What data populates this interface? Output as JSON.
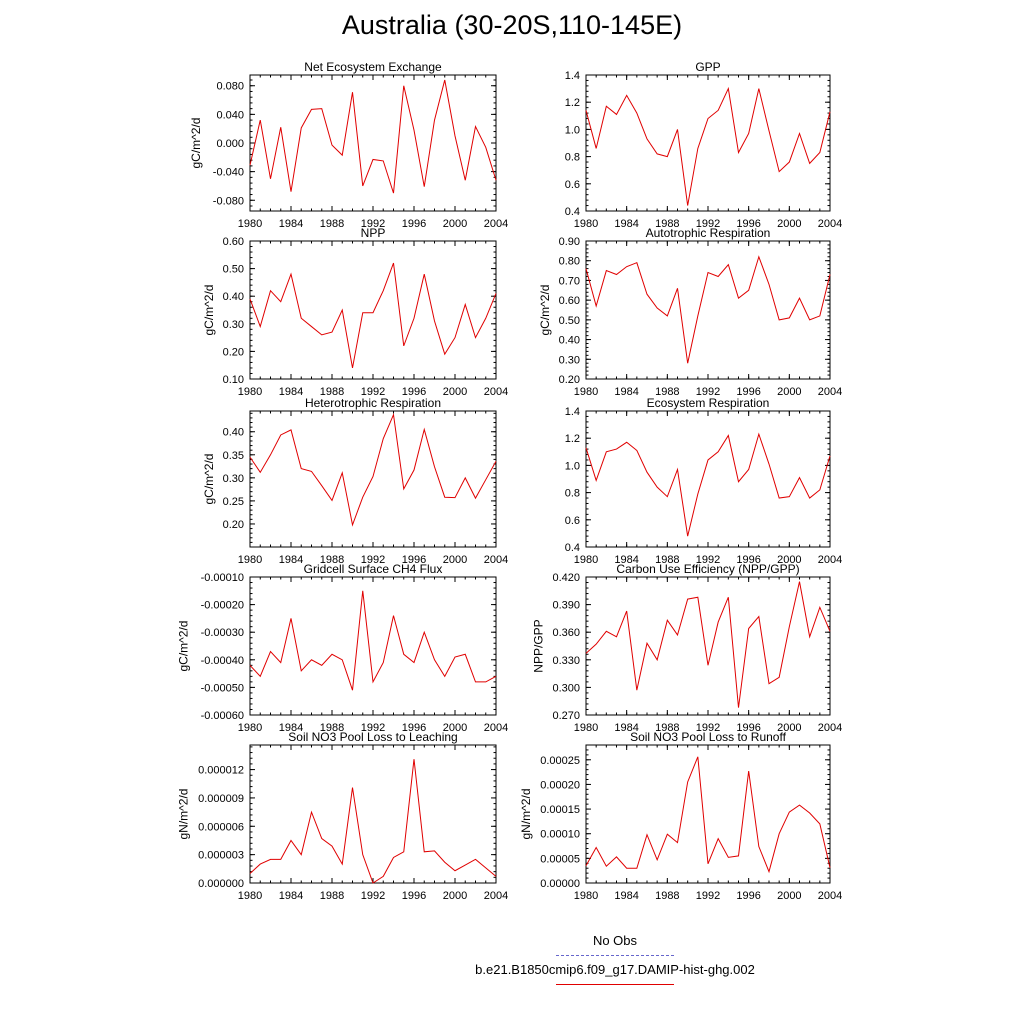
{
  "page_title": "Australia (30-20S,110-145E)",
  "legend": {
    "obs_label": "No Obs",
    "model_label": "b.e21.B1850cmip6.f09_g17.DAMIP-hist-ghg.002",
    "obs_color": "#6666cc",
    "model_color": "#e00000"
  },
  "chart_data": [
    {
      "type": "line",
      "title": "Net Ecosystem Exchange",
      "ylabel": "gC/m^2/d",
      "xlim": [
        1980,
        2004
      ],
      "ylim": [
        -0.095,
        0.095
      ],
      "yticks": [
        "0.080",
        "0.040",
        "0.000",
        "-0.040",
        "-0.080"
      ],
      "ytick_values": [
        0.08,
        0.04,
        0.0,
        -0.04,
        -0.08
      ],
      "xticks": [
        "1980",
        "1984",
        "1988",
        "1992",
        "1996",
        "2000",
        "2004"
      ],
      "x": [
        1980,
        1981,
        1982,
        1983,
        1984,
        1985,
        1986,
        1987,
        1988,
        1989,
        1990,
        1991,
        1992,
        1993,
        1994,
        1995,
        1996,
        1997,
        1998,
        1999,
        2000,
        2001,
        2002,
        2003,
        2004
      ],
      "series": [
        {
          "values": [
            -0.031,
            0.032,
            -0.05,
            0.022,
            -0.068,
            0.021,
            0.047,
            0.048,
            -0.003,
            -0.017,
            0.071,
            -0.06,
            -0.023,
            -0.025,
            -0.07,
            0.08,
            0.018,
            -0.061,
            0.032,
            0.088,
            0.01,
            -0.052,
            0.023,
            -0.006,
            -0.052
          ],
          "color": "#e00000"
        }
      ]
    },
    {
      "type": "line",
      "title": "GPP",
      "ylabel": "",
      "xlim": [
        1980,
        2004
      ],
      "ylim": [
        0.4,
        1.4
      ],
      "yticks": [
        "1.4",
        "1.2",
        "1.0",
        "0.8",
        "0.6",
        "0.4"
      ],
      "ytick_values": [
        1.4,
        1.2,
        1.0,
        0.8,
        0.6,
        0.4
      ],
      "xticks": [
        "1980",
        "1984",
        "1988",
        "1992",
        "1996",
        "2000",
        "2004"
      ],
      "x": [
        1980,
        1981,
        1982,
        1983,
        1984,
        1985,
        1986,
        1987,
        1988,
        1989,
        1990,
        1991,
        1992,
        1993,
        1994,
        1995,
        1996,
        1997,
        1998,
        1999,
        2000,
        2001,
        2002,
        2003,
        2004
      ],
      "series": [
        {
          "values": [
            1.14,
            0.86,
            1.17,
            1.11,
            1.25,
            1.12,
            0.93,
            0.82,
            0.8,
            1.0,
            0.44,
            0.86,
            1.08,
            1.14,
            1.3,
            0.83,
            0.97,
            1.3,
            0.99,
            0.69,
            0.76,
            0.97,
            0.75,
            0.83,
            1.13
          ],
          "color": "#e00000"
        }
      ]
    },
    {
      "type": "line",
      "title": "NPP",
      "ylabel": "gC/m^2/d",
      "xlim": [
        1980,
        2004
      ],
      "ylim": [
        0.1,
        0.6
      ],
      "yticks": [
        "0.60",
        "0.50",
        "0.40",
        "0.30",
        "0.20",
        "0.10"
      ],
      "ytick_values": [
        0.6,
        0.5,
        0.4,
        0.3,
        0.2,
        0.1
      ],
      "xticks": [
        "1980",
        "1984",
        "1988",
        "1992",
        "1996",
        "2000",
        "2004"
      ],
      "x": [
        1980,
        1981,
        1982,
        1983,
        1984,
        1985,
        1986,
        1987,
        1988,
        1989,
        1990,
        1991,
        1992,
        1993,
        1994,
        1995,
        1996,
        1997,
        1998,
        1999,
        2000,
        2001,
        2002,
        2003,
        2004
      ],
      "series": [
        {
          "values": [
            0.39,
            0.29,
            0.42,
            0.38,
            0.48,
            0.32,
            0.29,
            0.26,
            0.27,
            0.35,
            0.14,
            0.34,
            0.34,
            0.42,
            0.52,
            0.22,
            0.32,
            0.48,
            0.31,
            0.19,
            0.25,
            0.37,
            0.25,
            0.32,
            0.41
          ],
          "color": "#e00000"
        }
      ]
    },
    {
      "type": "line",
      "title": "Autotrophic Respiration",
      "ylabel": "gC/m^2/d",
      "xlim": [
        1980,
        2004
      ],
      "ylim": [
        0.2,
        0.9
      ],
      "yticks": [
        "0.90",
        "0.80",
        "0.70",
        "0.60",
        "0.50",
        "0.40",
        "0.30",
        "0.20"
      ],
      "ytick_values": [
        0.9,
        0.8,
        0.7,
        0.6,
        0.5,
        0.4,
        0.3,
        0.2
      ],
      "xticks": [
        "1980",
        "1984",
        "1988",
        "1992",
        "1996",
        "2000",
        "2004"
      ],
      "x": [
        1980,
        1981,
        1982,
        1983,
        1984,
        1985,
        1986,
        1987,
        1988,
        1989,
        1990,
        1991,
        1992,
        1993,
        1994,
        1995,
        1996,
        1997,
        1998,
        1999,
        2000,
        2001,
        2002,
        2003,
        2004
      ],
      "series": [
        {
          "values": [
            0.76,
            0.57,
            0.75,
            0.73,
            0.77,
            0.79,
            0.63,
            0.56,
            0.52,
            0.66,
            0.28,
            0.52,
            0.74,
            0.72,
            0.78,
            0.61,
            0.65,
            0.82,
            0.68,
            0.5,
            0.51,
            0.61,
            0.5,
            0.52,
            0.73
          ],
          "color": "#e00000"
        }
      ]
    },
    {
      "type": "line",
      "title": "Heterotrophic Respiration",
      "ylabel": "gC/m^2/d",
      "xlim": [
        1980,
        2004
      ],
      "ylim": [
        0.15,
        0.445
      ],
      "yticks": [
        "0.40",
        "0.35",
        "0.30",
        "0.25",
        "0.20"
      ],
      "ytick_values": [
        0.4,
        0.35,
        0.3,
        0.25,
        0.2
      ],
      "xticks": [
        "1980",
        "1984",
        "1988",
        "1992",
        "1996",
        "2000",
        "2004"
      ],
      "x": [
        1980,
        1981,
        1982,
        1983,
        1984,
        1985,
        1986,
        1987,
        1988,
        1989,
        1990,
        1991,
        1992,
        1993,
        1994,
        1995,
        1996,
        1997,
        1998,
        1999,
        2000,
        2001,
        2002,
        2003,
        2004
      ],
      "series": [
        {
          "values": [
            0.345,
            0.312,
            0.35,
            0.393,
            0.404,
            0.32,
            0.314,
            0.283,
            0.251,
            0.311,
            0.198,
            0.258,
            0.303,
            0.385,
            0.437,
            0.276,
            0.317,
            0.405,
            0.324,
            0.258,
            0.257,
            0.3,
            0.256,
            0.296,
            0.336
          ],
          "color": "#e00000"
        }
      ]
    },
    {
      "type": "line",
      "title": "Ecosystem Respiration",
      "ylabel": "",
      "xlim": [
        1980,
        2004
      ],
      "ylim": [
        0.4,
        1.4
      ],
      "yticks": [
        "1.4",
        "1.2",
        "1.0",
        "0.8",
        "0.6",
        "0.4"
      ],
      "ytick_values": [
        1.4,
        1.2,
        1.0,
        0.8,
        0.6,
        0.4
      ],
      "xticks": [
        "1980",
        "1984",
        "1988",
        "1992",
        "1996",
        "2000",
        "2004"
      ],
      "x": [
        1980,
        1981,
        1982,
        1983,
        1984,
        1985,
        1986,
        1987,
        1988,
        1989,
        1990,
        1991,
        1992,
        1993,
        1994,
        1995,
        1996,
        1997,
        1998,
        1999,
        2000,
        2001,
        2002,
        2003,
        2004
      ],
      "series": [
        {
          "values": [
            1.13,
            0.89,
            1.1,
            1.12,
            1.17,
            1.11,
            0.95,
            0.84,
            0.77,
            0.97,
            0.48,
            0.79,
            1.04,
            1.1,
            1.22,
            0.88,
            0.97,
            1.23,
            1.01,
            0.76,
            0.77,
            0.91,
            0.76,
            0.82,
            1.07
          ],
          "color": "#e00000"
        }
      ]
    },
    {
      "type": "line",
      "title": "Gridcell Surface CH4 Flux",
      "ylabel": "gC/m^2/d",
      "xlim": [
        1980,
        2004
      ],
      "ylim": [
        -0.0006,
        -0.0001
      ],
      "yticks": [
        "-0.00010",
        "-0.00020",
        "-0.00030",
        "-0.00040",
        "-0.00050",
        "-0.00060"
      ],
      "ytick_values": [
        -0.0001,
        -0.0002,
        -0.0003,
        -0.0004,
        -0.0005,
        -0.0006
      ],
      "xticks": [
        "1980",
        "1984",
        "1988",
        "1992",
        "1996",
        "2000",
        "2004"
      ],
      "x": [
        1980,
        1981,
        1982,
        1983,
        1984,
        1985,
        1986,
        1987,
        1988,
        1989,
        1990,
        1991,
        1992,
        1993,
        1994,
        1995,
        1996,
        1997,
        1998,
        1999,
        2000,
        2001,
        2002,
        2003,
        2004
      ],
      "series": [
        {
          "values": [
            -0.00042,
            -0.00046,
            -0.00037,
            -0.00041,
            -0.00025,
            -0.00044,
            -0.0004,
            -0.00042,
            -0.00038,
            -0.0004,
            -0.00051,
            -0.00015,
            -0.00048,
            -0.00041,
            -0.00024,
            -0.00038,
            -0.00041,
            -0.0003,
            -0.0004,
            -0.00046,
            -0.00039,
            -0.00038,
            -0.00048,
            -0.00048,
            -0.00046
          ],
          "color": "#e00000"
        }
      ]
    },
    {
      "type": "line",
      "title": "Carbon Use Efficiency (NPP/GPP)",
      "ylabel": "NPP/GPP",
      "xlim": [
        1980,
        2004
      ],
      "ylim": [
        0.27,
        0.42
      ],
      "yticks": [
        "0.420",
        "0.390",
        "0.360",
        "0.330",
        "0.300",
        "0.270"
      ],
      "ytick_values": [
        0.42,
        0.39,
        0.36,
        0.33,
        0.3,
        0.27
      ],
      "xticks": [
        "1980",
        "1984",
        "1988",
        "1992",
        "1996",
        "2000",
        "2004"
      ],
      "x": [
        1980,
        1981,
        1982,
        1983,
        1984,
        1985,
        1986,
        1987,
        1988,
        1989,
        1990,
        1991,
        1992,
        1993,
        1994,
        1995,
        1996,
        1997,
        1998,
        1999,
        2000,
        2001,
        2002,
        2003,
        2004
      ],
      "series": [
        {
          "values": [
            0.337,
            0.347,
            0.361,
            0.355,
            0.383,
            0.297,
            0.348,
            0.33,
            0.373,
            0.357,
            0.396,
            0.398,
            0.324,
            0.371,
            0.398,
            0.278,
            0.364,
            0.377,
            0.304,
            0.311,
            0.366,
            0.415,
            0.355,
            0.387,
            0.361
          ],
          "color": "#e00000"
        }
      ]
    },
    {
      "type": "line",
      "title": "Soil NO3 Pool Loss to Leaching",
      "ylabel": "gN/m^2/d",
      "xlim": [
        1980,
        2004
      ],
      "ylim": [
        0.0,
        1.46e-05
      ],
      "yticks": [
        "0.000012",
        "0.000009",
        "0.000006",
        "0.000003",
        "0.000000"
      ],
      "ytick_values": [
        1.2e-05,
        9e-06,
        6e-06,
        3e-06,
        0.0
      ],
      "xticks": [
        "1980",
        "1984",
        "1988",
        "1992",
        "1996",
        "2000",
        "2004"
      ],
      "x": [
        1980,
        1981,
        1982,
        1983,
        1984,
        1985,
        1986,
        1987,
        1988,
        1989,
        1990,
        1991,
        1992,
        1993,
        1994,
        1995,
        1996,
        1997,
        1998,
        1999,
        2000,
        2001,
        2002,
        2003,
        2004
      ],
      "series": [
        {
          "values": [
            1e-06,
            2e-06,
            2.5e-06,
            2.5e-06,
            4.5e-06,
            3e-06,
            7.5e-06,
            4.7e-06,
            3.9e-06,
            2e-06,
            1.01e-05,
            3e-06,
            0.0,
            7e-07,
            2.7e-06,
            3.3e-06,
            1.31e-05,
            3.3e-06,
            3.4e-06,
            2.2e-06,
            1.3e-06,
            1.9e-06,
            2.5e-06,
            1.6e-06,
            7e-07
          ],
          "color": "#e00000"
        }
      ]
    },
    {
      "type": "line",
      "title": "Soil NO3 Pool Loss to Runoff",
      "ylabel": "gN/m^2/d",
      "xlim": [
        1980,
        2004
      ],
      "ylim": [
        0.0,
        0.00028
      ],
      "yticks": [
        "0.00025",
        "0.00020",
        "0.00015",
        "0.00010",
        "0.00005",
        "0.00000"
      ],
      "ytick_values": [
        0.00025,
        0.0002,
        0.00015,
        0.0001,
        5e-05,
        0.0
      ],
      "xticks": [
        "1980",
        "1984",
        "1988",
        "1992",
        "1996",
        "2000",
        "2004"
      ],
      "x": [
        1980,
        1981,
        1982,
        1983,
        1984,
        1985,
        1986,
        1987,
        1988,
        1989,
        1990,
        1991,
        1992,
        1993,
        1994,
        1995,
        1996,
        1997,
        1998,
        1999,
        2000,
        2001,
        2002,
        2003,
        2004
      ],
      "series": [
        {
          "values": [
            3.5e-05,
            7.2e-05,
            3.4e-05,
            5.3e-05,
            3e-05,
            3e-05,
            9.8e-05,
            4.7e-05,
            9.9e-05,
            8.2e-05,
            0.000205,
            0.000256,
            3.9e-05,
            9e-05,
            5.2e-05,
            5.5e-05,
            0.000227,
            7.4e-05,
            2.3e-05,
            0.0001,
            0.000144,
            0.000158,
            0.000142,
            0.00012,
            3.1e-05
          ],
          "color": "#e00000"
        }
      ]
    }
  ]
}
